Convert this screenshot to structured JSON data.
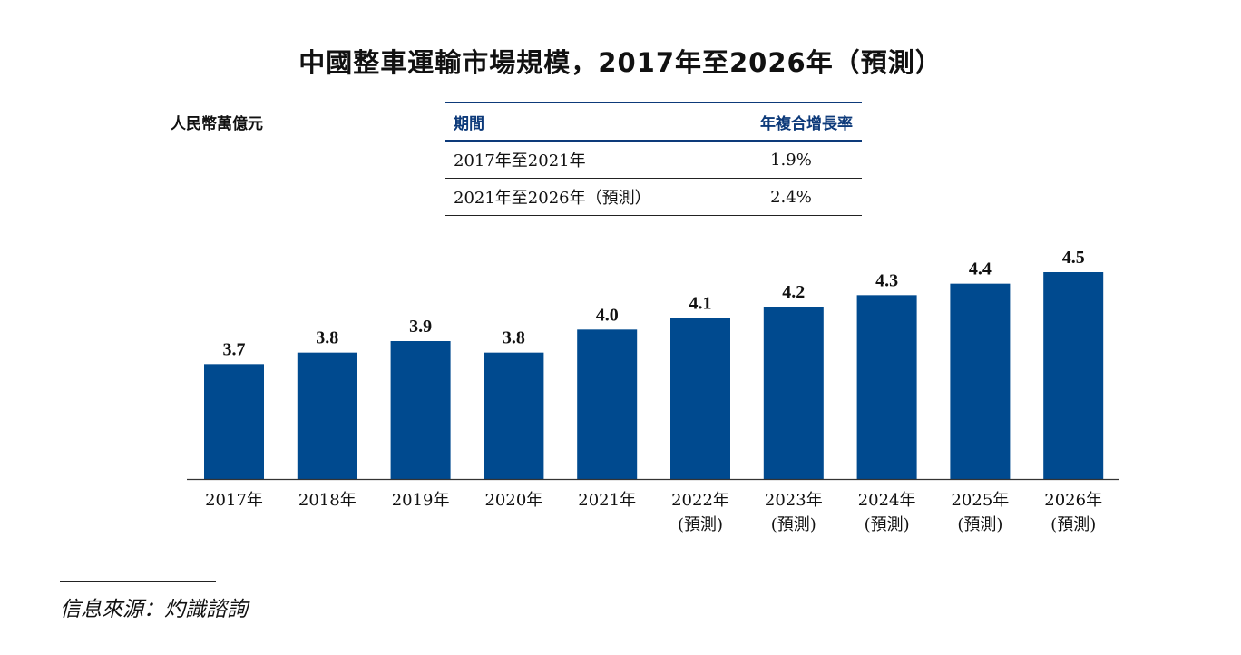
{
  "title": "中國整車運輸市場規模，2017年至2026年（預測）",
  "unit_label": "人民幣萬億元",
  "cagr_table": {
    "headers": [
      "期間",
      "年複合增長率"
    ],
    "rows": [
      [
        "2017年至2021年",
        "1.9%"
      ],
      [
        "2021年至2026年（預測）",
        "2.4%"
      ]
    ]
  },
  "chart_data": {
    "type": "bar",
    "categories": [
      [
        "2017年"
      ],
      [
        "2018年"
      ],
      [
        "2019年"
      ],
      [
        "2020年"
      ],
      [
        "2021年"
      ],
      [
        "2022年",
        "(預測)"
      ],
      [
        "2023年",
        "(預測)"
      ],
      [
        "2024年",
        "(預測)"
      ],
      [
        "2025年",
        "(預測)"
      ],
      [
        "2026年",
        "(預測)"
      ]
    ],
    "values": [
      3.7,
      3.8,
      3.9,
      3.8,
      4.0,
      4.1,
      4.2,
      4.3,
      4.4,
      4.5
    ],
    "value_labels": [
      "3.7",
      "3.8",
      "3.9",
      "3.8",
      "4.0",
      "4.1",
      "4.2",
      "4.3",
      "4.4",
      "4.5"
    ],
    "bar_color": "#004A8F",
    "ylim": [
      2.7,
      4.5
    ],
    "grid": false,
    "legend": "none"
  },
  "source": "信息來源：灼識諮詢"
}
